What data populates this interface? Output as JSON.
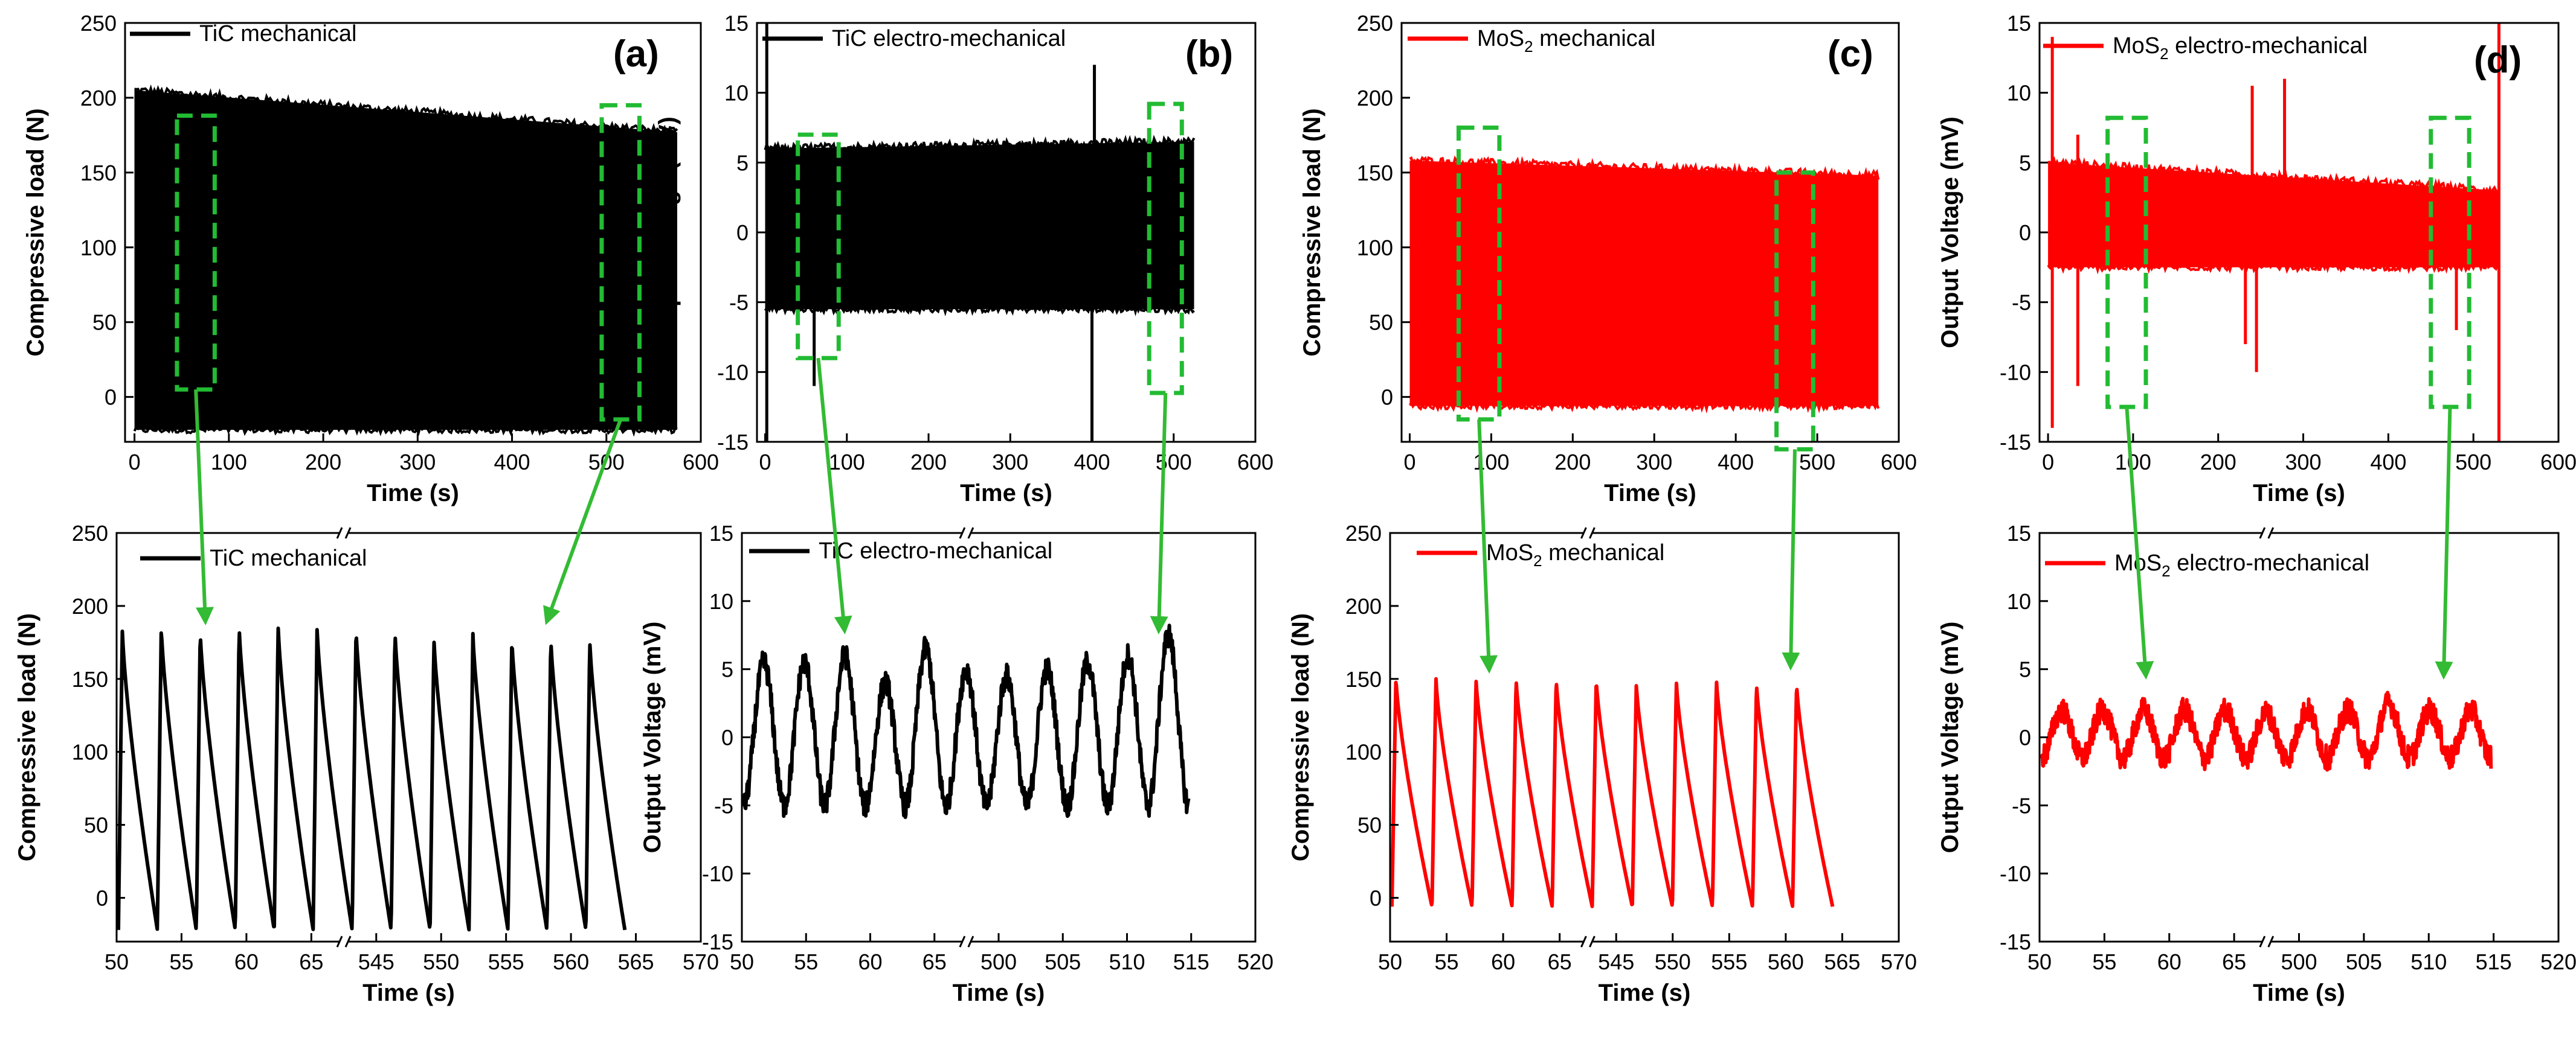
{
  "chart_data": [
    {
      "id": "a-top",
      "type": "line",
      "panel_label": "(a)",
      "legend": "TiC mechanical",
      "legend_sub": "",
      "series_color": "#000000",
      "xlabel": "Time (s)",
      "ylabel": "Compressive load (N)",
      "xlim": [
        -10,
        600
      ],
      "ylim": [
        -30,
        250
      ],
      "xticks": [
        0,
        100,
        200,
        300,
        400,
        500,
        600
      ],
      "xtick_labels": [
        "0",
        "100",
        "200",
        "300",
        "400",
        "500",
        "600"
      ],
      "yticks": [
        0,
        50,
        100,
        150,
        200,
        250
      ],
      "ytick_labels": [
        "0",
        "50",
        "100",
        "150",
        "200",
        "250"
      ],
      "signal": {
        "x_start": 0,
        "x_end": 575,
        "upper_start": 205,
        "upper_end": 177,
        "lower": -22
      },
      "zoom_boxes": [
        {
          "x": [
            45,
            85
          ],
          "y": [
            5,
            188
          ]
        },
        {
          "x": [
            495,
            535
          ],
          "y": [
            -15,
            195
          ]
        }
      ]
    },
    {
      "id": "b-top",
      "type": "line",
      "panel_label": "(b)",
      "legend": "TiC electro-mechanical",
      "legend_sub": "",
      "series_color": "#000000",
      "xlabel": "Time (s)",
      "ylabel": "Output Voltage (mV)",
      "xlim": [
        -10,
        600
      ],
      "ylim": [
        -15,
        15
      ],
      "xticks": [
        0,
        100,
        200,
        300,
        400,
        500,
        600
      ],
      "xtick_labels": [
        "0",
        "100",
        "200",
        "300",
        "400",
        "500",
        "600"
      ],
      "yticks": [
        -15,
        -10,
        -5,
        0,
        5,
        10,
        15
      ],
      "ytick_labels": [
        "-15",
        "-10",
        "-5",
        "0",
        "5",
        "10",
        "15"
      ],
      "signal": {
        "x_start": 0,
        "x_end": 525,
        "upper_start": 6,
        "upper_end": 6.5,
        "lower": -5.5
      },
      "spikes": [
        {
          "x": 2,
          "y": -15
        },
        {
          "x": 2,
          "y": 15
        },
        {
          "x": 400,
          "y": -15
        },
        {
          "x": 403,
          "y": 12
        },
        {
          "x": 60,
          "y": -11
        }
      ],
      "zoom_boxes": [
        {
          "x": [
            40,
            90
          ],
          "y": [
            -9,
            7
          ]
        },
        {
          "x": [
            470,
            510
          ],
          "y": [
            -11.5,
            9.2
          ]
        }
      ]
    },
    {
      "id": "c-top",
      "type": "line",
      "panel_label": "(c)",
      "legend": "MoS",
      "legend_sub": "2",
      "legend_tail": " mechanical",
      "series_color": "#ff0000",
      "xlabel": "Time (s)",
      "ylabel": "Compressive load (N)",
      "xlim": [
        -10,
        600
      ],
      "ylim": [
        -30,
        250
      ],
      "xticks": [
        0,
        100,
        200,
        300,
        400,
        500,
        600
      ],
      "xtick_labels": [
        "0",
        "100",
        "200",
        "300",
        "400",
        "500",
        "600"
      ],
      "yticks": [
        0,
        50,
        100,
        150,
        200,
        250
      ],
      "ytick_labels": [
        "0",
        "50",
        "100",
        "150",
        "200",
        "250"
      ],
      "signal": {
        "x_start": 0,
        "x_end": 575,
        "upper_start": 158,
        "upper_end": 148,
        "lower": -6
      },
      "zoom_boxes": [
        {
          "x": [
            60,
            110
          ],
          "y": [
            -15,
            180
          ]
        },
        {
          "x": [
            450,
            495
          ],
          "y": [
            -35,
            150
          ]
        }
      ]
    },
    {
      "id": "d-top",
      "type": "line",
      "panel_label": "(d)",
      "legend": "MoS",
      "legend_sub": "2",
      "legend_tail": " electro-mechanical",
      "series_color": "#ff0000",
      "xlabel": "Time (s)",
      "ylabel": "Output Voltage (mV)",
      "xlim": [
        -10,
        600
      ],
      "ylim": [
        -15,
        15
      ],
      "xticks": [
        0,
        100,
        200,
        300,
        400,
        500,
        600
      ],
      "xtick_labels": [
        "0",
        "100",
        "200",
        "300",
        "400",
        "500",
        "600"
      ],
      "yticks": [
        -15,
        -10,
        -5,
        0,
        5,
        10,
        15
      ],
      "ytick_labels": [
        "-15",
        "-10",
        "-5",
        "0",
        "5",
        "10",
        "15"
      ],
      "signal": {
        "x_start": 0,
        "x_end": 530,
        "upper_start": 5,
        "upper_end": 3,
        "lower": -2.5
      },
      "spikes": [
        {
          "x": 5,
          "y": 14
        },
        {
          "x": 5,
          "y": -14
        },
        {
          "x": 35,
          "y": 7
        },
        {
          "x": 35,
          "y": -11
        },
        {
          "x": 240,
          "y": 10.5
        },
        {
          "x": 278,
          "y": 11
        },
        {
          "x": 245,
          "y": -10
        },
        {
          "x": 232,
          "y": -8
        },
        {
          "x": 530,
          "y": 15
        },
        {
          "x": 530,
          "y": -15
        },
        {
          "x": 480,
          "y": -7
        }
      ],
      "zoom_boxes": [
        {
          "x": [
            70,
            115
          ],
          "y": [
            -12.5,
            8.2
          ]
        },
        {
          "x": [
            450,
            495
          ],
          "y": [
            -12.5,
            8.2
          ]
        }
      ]
    },
    {
      "id": "a-bot",
      "type": "line",
      "legend": "TiC mechanical",
      "legend_sub": "",
      "series_color": "#000000",
      "xlabel": "Time (s)",
      "ylabel": "Compressive load (N)",
      "xlim": [
        50,
        570
      ],
      "ylim": [
        -30,
        250
      ],
      "xticks": [
        50,
        55,
        60,
        65,
        545,
        550,
        555,
        560,
        565,
        570
      ],
      "xtick_labels": [
        "50",
        "55",
        "60",
        "65",
        "545",
        "550",
        "555",
        "560",
        "565",
        "570"
      ],
      "xtick_positions": [
        0,
        1,
        2,
        3,
        4,
        5,
        6,
        7,
        8,
        9
      ],
      "yticks": [
        0,
        50,
        100,
        150,
        200,
        250
      ],
      "ytick_labels": [
        "0",
        "50",
        "100",
        "150",
        "200",
        "250"
      ],
      "peaks": [
        184,
        186,
        183,
        186,
        187,
        186,
        185,
        183,
        178,
        181,
        178,
        178,
        177
      ],
      "trough": -22,
      "zoom_anchor": "left"
    },
    {
      "id": "b-bot",
      "type": "line",
      "legend": "TiC electro-mechanical",
      "legend_sub": "",
      "series_color": "#000000",
      "xlabel": "Time (s)",
      "ylabel": "Output Voltage (mV)",
      "xlim": [
        50,
        520
      ],
      "ylim": [
        -15,
        15
      ],
      "xticks": [
        50,
        55,
        60,
        65,
        500,
        505,
        510,
        515,
        520
      ],
      "xtick_labels": [
        "50",
        "55",
        "60",
        "65",
        "500",
        "505",
        "510",
        "515",
        "520"
      ],
      "xtick_positions": [
        0,
        1,
        2,
        3,
        4,
        5,
        6,
        7,
        8
      ],
      "yticks": [
        -15,
        -10,
        -5,
        0,
        5,
        10,
        15
      ],
      "ytick_labels": [
        "-15",
        "-10",
        "-5",
        "0",
        "5",
        "10",
        "15"
      ],
      "peaks": [
        5.5,
        5.5,
        6,
        4,
        6.5,
        5,
        4.5,
        5,
        5.5,
        6,
        7.5
      ],
      "trough": -5
    },
    {
      "id": "c-bot",
      "type": "line",
      "legend": "MoS",
      "legend_sub": "2",
      "legend_tail": " mechanical",
      "series_color": "#ff0000",
      "xlabel": "Time (s)",
      "ylabel": "Compressive load (N)",
      "xlim": [
        50,
        570
      ],
      "ylim": [
        -30,
        250
      ],
      "xticks": [
        50,
        55,
        60,
        65,
        545,
        550,
        555,
        560,
        565,
        570
      ],
      "xtick_labels": [
        "50",
        "55",
        "60",
        "65",
        "545",
        "550",
        "555",
        "560",
        "565",
        "570"
      ],
      "xtick_positions": [
        0,
        1,
        2,
        3,
        4,
        5,
        6,
        7,
        8,
        9
      ],
      "yticks": [
        0,
        50,
        100,
        150,
        200,
        250
      ],
      "ytick_labels": [
        "0",
        "50",
        "100",
        "150",
        "200",
        "250"
      ],
      "peaks": [
        151,
        150,
        150,
        150,
        150,
        150,
        147,
        148,
        150,
        147,
        147
      ],
      "trough": -6
    },
    {
      "id": "d-bot",
      "type": "line",
      "legend": "MoS",
      "legend_sub": "2",
      "legend_tail": " electro-mechanical",
      "series_color": "#ff0000",
      "xlabel": "Time (s)",
      "ylabel": "Output Voltage (mV)",
      "xlim": [
        50,
        520
      ],
      "ylim": [
        -15,
        15
      ],
      "xticks": [
        50,
        55,
        60,
        65,
        500,
        505,
        510,
        515,
        520
      ],
      "xtick_labels": [
        "50",
        "55",
        "60",
        "65",
        "500",
        "505",
        "510",
        "515",
        "520"
      ],
      "xtick_positions": [
        0,
        1,
        2,
        3,
        4,
        5,
        6,
        7,
        8
      ],
      "yticks": [
        -15,
        -10,
        -5,
        0,
        5,
        10,
        15
      ],
      "ytick_labels": [
        "-15",
        "-10",
        "-5",
        "0",
        "5",
        "10",
        "15"
      ],
      "peaks": [
        2,
        2,
        2,
        2,
        2,
        1.8,
        2,
        2,
        2.5,
        2,
        2
      ],
      "trough": -1.5
    }
  ],
  "colors": {
    "zoom_box": "#22bb33",
    "arrow": "#33bb33"
  }
}
